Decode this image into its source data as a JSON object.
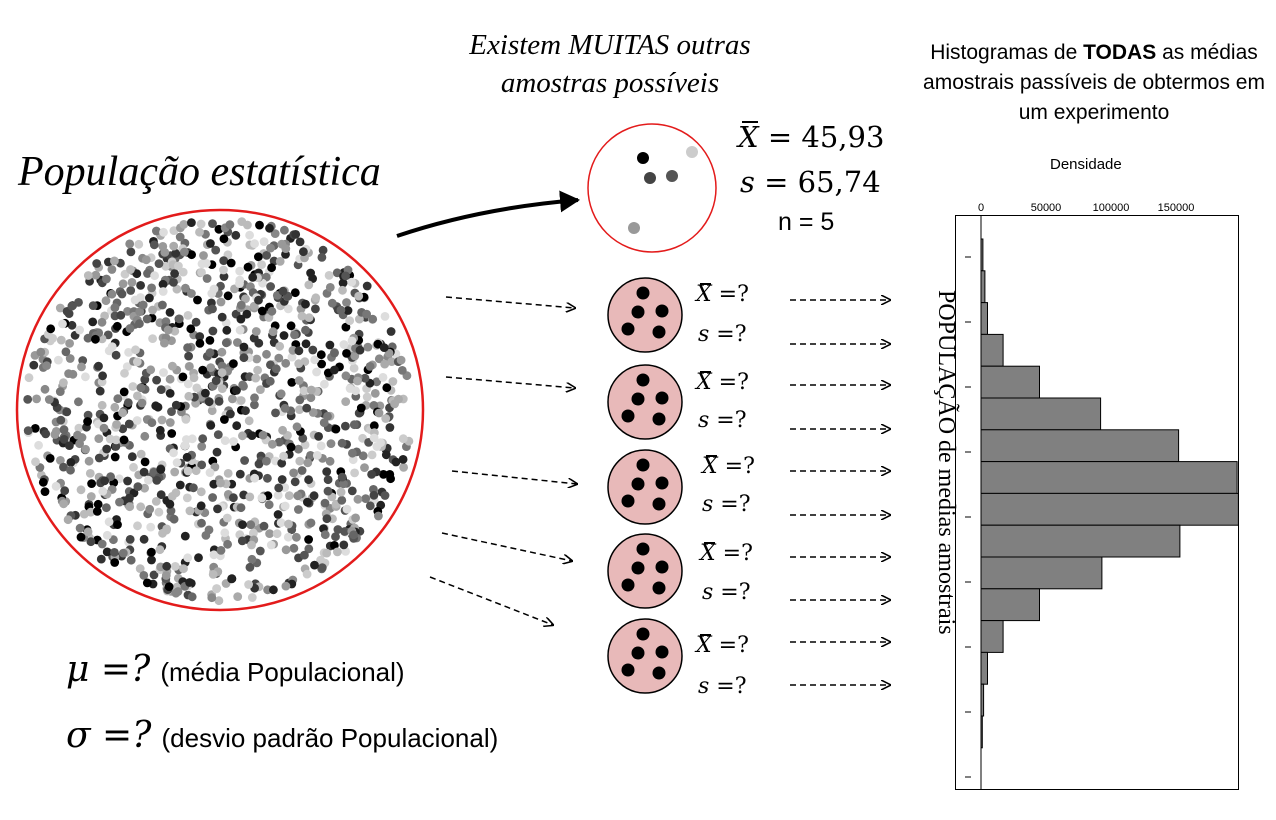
{
  "population": {
    "title": "População estatística",
    "mu_symbol": "μ =?",
    "mu_note": "(média Populacional)",
    "sigma_symbol": "σ =?",
    "sigma_note": "(desvio padrão Populacional)",
    "circle_color": "#e31b1b"
  },
  "other_samples": {
    "title_line1": "Existem MUITAS outras",
    "title_line2": "amostras possíveis"
  },
  "example_sample": {
    "xbar_label": "X = 45,93",
    "xbar_var": "X",
    "xbar_value": "= 45,93",
    "s_var": "s",
    "s_value": "= 65,74",
    "n_label": "n = 5",
    "circle_color": "#e31b1b"
  },
  "samples": [
    {
      "xbar_var": "X",
      "xbar_value": "=?",
      "s_var": "s",
      "s_value": "=?"
    },
    {
      "xbar_var": "X",
      "xbar_value": "=?",
      "s_var": "s",
      "s_value": "=?"
    },
    {
      "xbar_var": "X",
      "xbar_value": "=?",
      "s_var": "s",
      "s_value": "=?"
    },
    {
      "xbar_var": "X",
      "xbar_value": "=?",
      "s_var": "s",
      "s_value": "=?"
    },
    {
      "xbar_var": "X",
      "xbar_value": "=?",
      "s_var": "s",
      "s_value": "=?"
    }
  ],
  "sample_fill": "#e8b9b9",
  "histogram": {
    "title_part1": "Histogramas de ",
    "title_bold": "TODAS",
    "title_part2": " as médias amostrais passíveis de obtermos em um experimento",
    "vertical_label": "POPULAÇÃO de medias amostrais",
    "bar_color": "#808080"
  },
  "chart_data": {
    "type": "bar",
    "orientation": "horizontal",
    "xlabel": "Densidade",
    "ylabel": "",
    "xlim": [
      0,
      200000
    ],
    "xticks": [
      0,
      50000,
      100000,
      150000
    ],
    "xtick_labels": [
      "0",
      "50000",
      "100000",
      "150000"
    ],
    "grid": false,
    "values": [
      1500,
      3000,
      5000,
      17000,
      45000,
      92000,
      152000,
      197000,
      198000,
      153000,
      93000,
      45000,
      17000,
      5000,
      2000,
      1000
    ]
  }
}
